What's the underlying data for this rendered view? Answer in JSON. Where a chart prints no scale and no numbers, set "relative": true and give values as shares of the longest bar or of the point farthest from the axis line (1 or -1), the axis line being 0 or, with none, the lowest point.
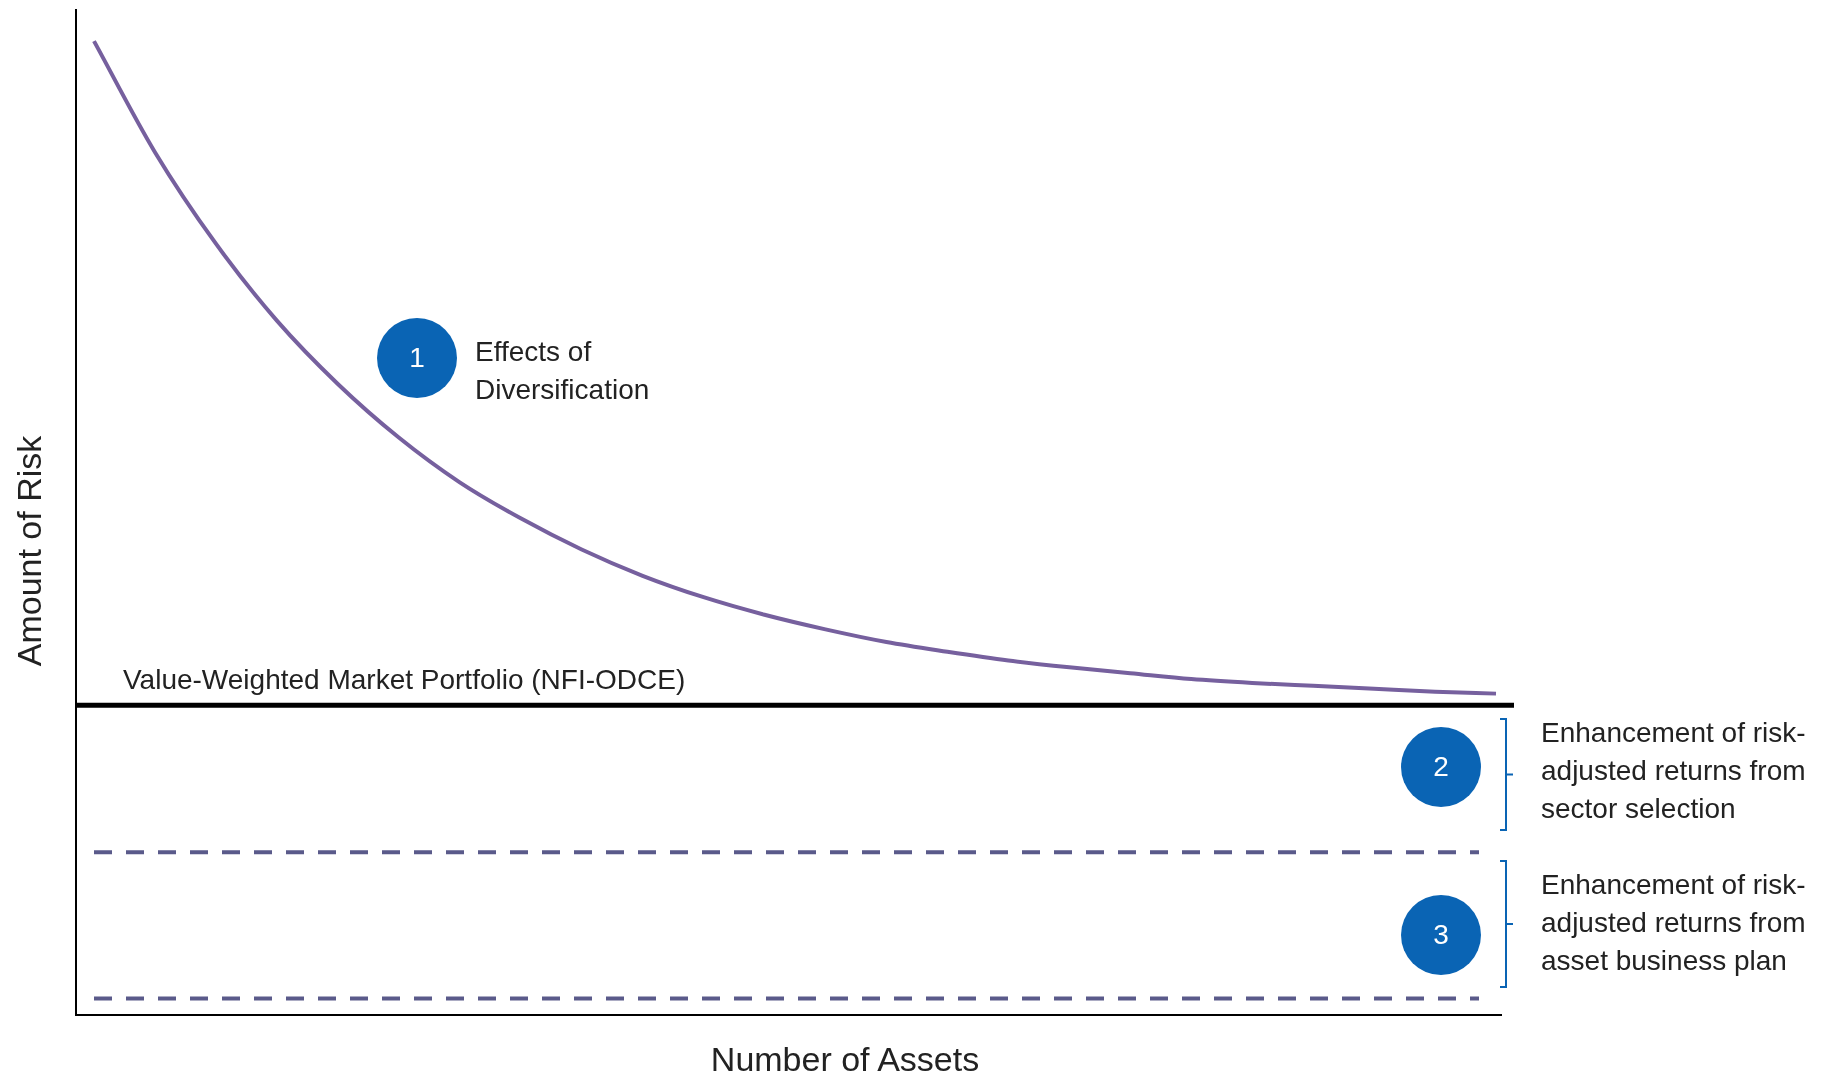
{
  "chart_data": {
    "type": "line",
    "relative": true,
    "xlabel": "Number of Assets",
    "ylabel": "Amount of Risk",
    "categories": [
      null,
      null,
      null,
      null,
      null,
      null,
      null,
      null,
      null,
      null,
      null,
      null,
      null,
      null,
      null,
      null,
      null,
      null,
      null,
      null,
      null,
      null,
      null,
      null
    ],
    "series": [
      {
        "color": "#76609e",
        "values": [
          1.0,
          0.886,
          0.792,
          0.713,
          0.648,
          0.593,
          0.547,
          0.51,
          0.478,
          0.451,
          0.429,
          0.411,
          0.396,
          0.383,
          0.373,
          0.364,
          0.357,
          0.351,
          0.345,
          0.341,
          0.338,
          0.335,
          0.332,
          0.33
        ]
      }
    ],
    "ref_lines": [
      {
        "axis": "y",
        "value": 0.318,
        "label": "Value-Weighted Market Portfolio (NFI-ODCE)",
        "color": "#000000",
        "line_style": "solid"
      },
      {
        "axis": "y",
        "value": 0.167,
        "label": null,
        "color": "#5a5a8a",
        "line_style": "dashed"
      },
      {
        "axis": "y",
        "value": 0.017,
        "label": null,
        "color": "#5a5a8a",
        "line_style": "dashed"
      }
    ],
    "annotations": [
      "1",
      "Effects of Diversification",
      "2",
      "Enhancement of risk-adjusted returns from sector selection",
      "3",
      "Enhancement of risk-adjusted returns from asset business plan"
    ],
    "legend": false
  }
}
